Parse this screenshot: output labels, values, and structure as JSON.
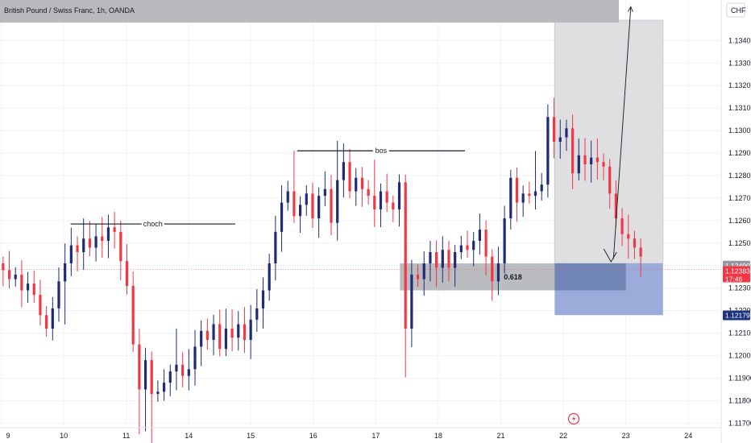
{
  "chart_data": {
    "type": "candlestick",
    "title": "British Pound / Swiss Franc, 1h, OANDA",
    "currency": "CHF",
    "ylim": [
      1.1168,
      1.1358
    ],
    "yticks": [
      1.117,
      1.118,
      1.119,
      1.12,
      1.121,
      1.122,
      1.123,
      1.124,
      1.125,
      1.126,
      1.127,
      1.128,
      1.129,
      1.13,
      1.131,
      1.132,
      1.133,
      1.134
    ],
    "ytick_labels": [
      "1.11700",
      "1.11800",
      "1.11900",
      "1.12000",
      "1.12100",
      "1.12200",
      "1.12300",
      "1.12400",
      "1.12500",
      "1.12600",
      "1.12700",
      "1.12800",
      "1.12900",
      "1.13000",
      "1.13100",
      "1.13200",
      "1.13300",
      "1.13400"
    ],
    "xticks": [
      {
        "label": "9",
        "pos": 0.2
      },
      {
        "label": "10",
        "pos": 10.3
      },
      {
        "label": "11",
        "pos": 20.4
      },
      {
        "label": "14",
        "pos": 30.5
      },
      {
        "label": "15",
        "pos": 40.5
      },
      {
        "label": "16",
        "pos": 50.6
      },
      {
        "label": "17",
        "pos": 60.7
      },
      {
        "label": "18",
        "pos": 70.8
      },
      {
        "label": "21",
        "pos": 80.9
      },
      {
        "label": "22",
        "pos": 91.0
      },
      {
        "label": "23",
        "pos": 101.1
      },
      {
        "label": "24",
        "pos": 111.2
      }
    ],
    "xlim": [
      0,
      116.5
    ],
    "candles_close": [
      1.1238,
      1.1234,
      1.1236,
      1.1229,
      1.1232,
      1.1227,
      1.1218,
      1.1212,
      1.1221,
      1.1233,
      1.1241,
      1.1249,
      1.1246,
      1.1252,
      1.1248,
      1.1253,
      1.1251,
      1.1257,
      1.1255,
      1.1242,
      1.1231,
      1.1205,
      1.1185,
      1.1198,
      1.1183,
      1.1184,
      1.1188,
      1.1193,
      1.1196,
      1.1191,
      1.1194,
      1.1204,
      1.1211,
      1.1207,
      1.1214,
      1.1203,
      1.1212,
      1.1208,
      1.1214,
      1.1207,
      1.1216,
      1.1221,
      1.1229,
      1.1241,
      1.1255,
      1.1268,
      1.1273,
      1.1262,
      1.1267,
      1.1272,
      1.1261,
      1.1271,
      1.1274,
      1.1259,
      1.1278,
      1.1286,
      1.1273,
      1.1279,
      1.1274,
      1.1271,
      1.1265,
      1.1273,
      1.1268,
      1.1265,
      1.1277,
      1.1212,
      1.1236,
      1.1234,
      1.1241,
      1.1246,
      1.1239,
      1.1247,
      1.1239,
      1.1246,
      1.1249,
      1.1247,
      1.1251,
      1.1256,
      1.1244,
      1.1233,
      1.1241,
      1.1261,
      1.1279,
      1.1268,
      1.1272,
      1.1271,
      1.1273,
      1.1276,
      1.1306,
      1.1295,
      1.1297,
      1.1301,
      1.1281,
      1.1289,
      1.1285,
      1.1288,
      1.1286,
      1.1284,
      1.1272,
      1.1261,
      1.1254,
      1.1252,
      1.1248,
      1.1244
    ],
    "current_price": "1.12383",
    "current_price_value": 1.12383,
    "countdown": "17:46",
    "level_label": "1.12400",
    "level_value": 1.124,
    "target_label": "1.12179",
    "target_value": 1.12179,
    "annotations": {
      "choch": {
        "label": "choch",
        "price": 1.12585,
        "x_start": 11.4,
        "x_end": 38.0
      },
      "bos": {
        "label": "bos",
        "price": 1.1291,
        "x_start": 48.0,
        "x_end": 75.1
      },
      "fib": {
        "label": "0.618",
        "price_top": 1.1241,
        "price_bottom": 1.1229,
        "x_start": 64.6,
        "x_end": 101.1
      },
      "stop_zone": {
        "price_top": 1.1349,
        "price_bottom": 1.1241,
        "x_start": 89.6,
        "x_end": 107.1
      },
      "target_zone": {
        "price_top": 1.1241,
        "price_bottom": 1.1218,
        "x_start": 89.6,
        "x_end": 107.1
      },
      "arrow": {
        "x_start": 99.1,
        "price_start": 1.1243,
        "x_end": 101.9,
        "price_end": 1.1355
      }
    },
    "colors": {
      "up": "#1f2b74",
      "down": "#f23645",
      "grid": "#f0f3fa",
      "stop_zone": "#dcdcde",
      "target_zone": "#97a8d8",
      "fib_zone": "#b7b8bc",
      "overlap": "#7285b7",
      "header_band": "#b8babd",
      "level_badge": "#9598a1",
      "price_badge": "#f23645",
      "target_badge": "#1e3380"
    },
    "grid": true
  }
}
